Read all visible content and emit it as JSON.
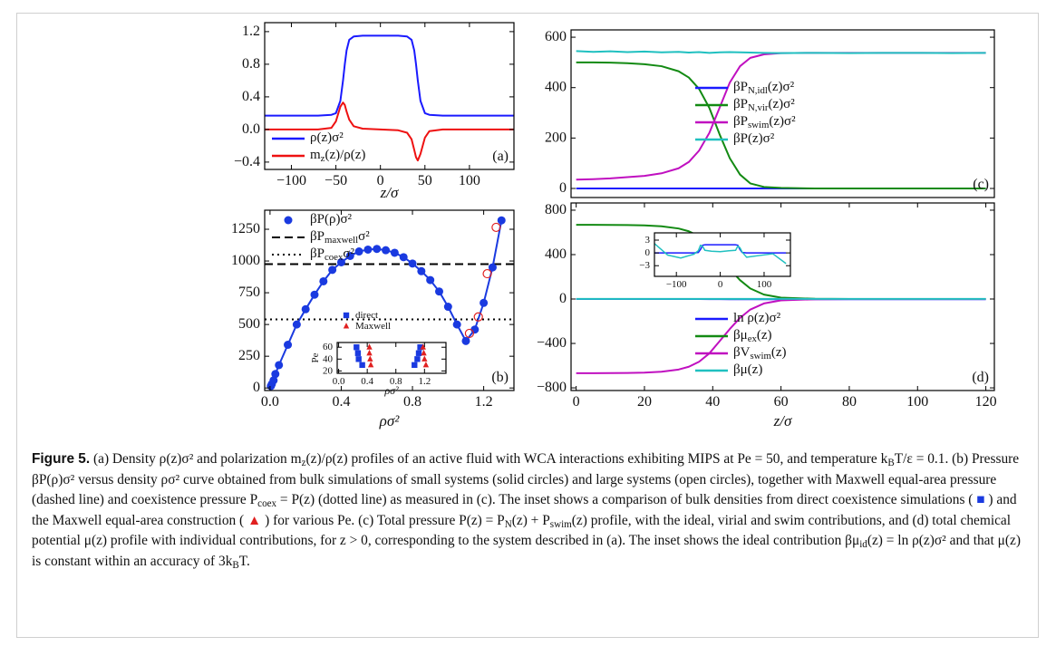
{
  "chart_data": [
    {
      "type": "line",
      "panel": "(a)",
      "xlabel": "z/σ",
      "legend": "lower left",
      "xlim": [
        -130,
        150
      ],
      "ylim": [
        -0.49,
        1.31
      ],
      "xticks": [
        {
          "value": -100,
          "label": "−100"
        },
        {
          "value": -50,
          "label": "−50"
        },
        0,
        50,
        100
      ],
      "yticks": [
        {
          "value": -0.4,
          "label": "−0.4"
        },
        {
          "value": 0,
          "label": "0.0"
        },
        0.4,
        0.8,
        1.2
      ],
      "series": [
        {
          "name": "ρ(z)σ²",
          "color": "#1a1aff",
          "x": [
            -130,
            -100,
            -70,
            -55,
            -50,
            -45,
            -42,
            -40,
            -38,
            -35,
            -30,
            -20,
            0,
            20,
            30,
            35,
            38,
            40,
            42,
            45,
            50,
            55,
            70,
            100,
            130,
            150
          ],
          "values": [
            0.17,
            0.17,
            0.17,
            0.18,
            0.2,
            0.35,
            0.6,
            0.8,
            0.97,
            1.1,
            1.14,
            1.15,
            1.15,
            1.15,
            1.14,
            1.1,
            0.97,
            0.8,
            0.6,
            0.35,
            0.2,
            0.18,
            0.17,
            0.17,
            0.17,
            0.17
          ]
        },
        {
          "name": "m_{z}(z)/ρ(z)",
          "color": "#ee1111",
          "x": [
            -130,
            -100,
            -70,
            -55,
            -50,
            -45,
            -42,
            -40,
            -38,
            -35,
            -30,
            -20,
            0,
            20,
            30,
            35,
            38,
            40,
            42,
            45,
            50,
            55,
            70,
            100,
            130,
            150
          ],
          "values": [
            0,
            0,
            0,
            0.02,
            0.1,
            0.28,
            0.33,
            0.3,
            0.22,
            0.12,
            0.04,
            0.01,
            0,
            -0.01,
            -0.04,
            -0.12,
            -0.25,
            -0.34,
            -0.38,
            -0.3,
            -0.1,
            -0.02,
            0,
            0,
            0,
            0
          ]
        }
      ]
    },
    {
      "type": "scatter",
      "panel": "(b)",
      "xlabel": "ρσ²",
      "legend": "upper left",
      "xlim": [
        -0.03,
        1.37
      ],
      "ylim": [
        -20,
        1400
      ],
      "xticks": [
        {
          "value": 0,
          "label": "0.0"
        },
        0.4,
        0.8,
        1.2
      ],
      "yticks": [
        0,
        250,
        500,
        750,
        1000,
        1250
      ],
      "series": [
        {
          "name": "βP(ρ)σ²",
          "color": "#1a3ae0",
          "marker": "circle",
          "line": true,
          "x": [
            0.005,
            0.01,
            0.02,
            0.03,
            0.05,
            0.1,
            0.15,
            0.2,
            0.25,
            0.3,
            0.35,
            0.4,
            0.45,
            0.5,
            0.55,
            0.6,
            0.65,
            0.7,
            0.75,
            0.8,
            0.85,
            0.9,
            0.95,
            1.0,
            1.05,
            1.1,
            1.15,
            1.2,
            1.25,
            1.3
          ],
          "values": [
            15,
            30,
            60,
            110,
            180,
            340,
            500,
            620,
            735,
            840,
            930,
            990,
            1040,
            1075,
            1090,
            1095,
            1085,
            1065,
            1030,
            980,
            920,
            850,
            760,
            640,
            500,
            370,
            460,
            670,
            950,
            1320
          ]
        },
        {
          "color": "#e02020",
          "marker": "open-circle",
          "x": [
            1.12,
            1.17,
            1.22,
            1.27
          ],
          "values": [
            430,
            560,
            900,
            1265
          ]
        }
      ],
      "hlines": [
        {
          "name": "βP_{maxwell}σ²",
          "value": 975,
          "style": "dashed",
          "color": "#000000"
        },
        {
          "name": "βP_{coex}σ²",
          "value": 540,
          "style": "dotted",
          "color": "#000000"
        }
      ],
      "inset": {
        "type": "scatter",
        "xlabel": "ρσ²",
        "ylabel": "Pe",
        "legend": "above",
        "xlim": [
          -0.02,
          1.5
        ],
        "ylim": [
          16,
          68
        ],
        "xticks": [
          {
            "value": 0,
            "label": "0.0"
          },
          0.4,
          0.8,
          1.2
        ],
        "yticks": [
          20,
          40,
          60
        ],
        "series": [
          {
            "name": "direct",
            "color": "#1a3ae0",
            "marker": "square",
            "x": [
              0.33,
              0.28,
              0.27,
              0.25,
              1.06,
              1.1,
              1.12,
              1.14
            ],
            "values": [
              30,
              40,
              50,
              60,
              30,
              40,
              50,
              60
            ]
          },
          {
            "name": "Maxwell",
            "color": "#e02020",
            "marker": "triangle",
            "x": [
              0.45,
              0.44,
              0.43,
              0.43,
              1.22,
              1.2,
              1.19,
              1.18
            ],
            "values": [
              30,
              40,
              50,
              60,
              30,
              40,
              50,
              60
            ]
          }
        ]
      }
    },
    {
      "type": "line",
      "panel": "(c)",
      "legend": "center right",
      "xlim": [
        -1.5,
        122.5
      ],
      "ylim": [
        -36,
        629
      ],
      "yticks": [
        0,
        200,
        400,
        600
      ],
      "series": [
        {
          "name": "βP_{N,idl}(z)σ²",
          "color": "#1a1aff",
          "x": [
            0,
            5,
            10,
            15,
            20,
            25,
            30,
            33,
            36,
            39,
            42,
            45,
            48,
            51,
            55,
            60,
            70,
            80,
            90,
            100,
            110,
            120
          ],
          "values": [
            0,
            0,
            0,
            0,
            0,
            0,
            0,
            0,
            0,
            0,
            0,
            0,
            0,
            0,
            0,
            0,
            0,
            0,
            0,
            0,
            0,
            0
          ]
        },
        {
          "name": "βP_{N,vir}(z)σ²",
          "color": "#138a13",
          "x": [
            0,
            5,
            10,
            15,
            20,
            25,
            30,
            33,
            36,
            39,
            42,
            45,
            48,
            51,
            55,
            60,
            70,
            80,
            90,
            100,
            110,
            120
          ],
          "values": [
            500,
            500,
            499,
            497,
            493,
            485,
            465,
            440,
            395,
            320,
            215,
            120,
            55,
            20,
            6,
            2,
            0,
            0,
            0,
            0,
            0,
            0
          ]
        },
        {
          "name": "βP_{swim}(z)σ²",
          "color": "#c010c0",
          "x": [
            0,
            5,
            10,
            15,
            20,
            25,
            30,
            33,
            36,
            39,
            42,
            45,
            48,
            51,
            55,
            60,
            70,
            80,
            90,
            100,
            110,
            120
          ],
          "values": [
            35,
            37,
            40,
            45,
            50,
            60,
            80,
            105,
            150,
            220,
            320,
            420,
            485,
            518,
            532,
            537,
            538,
            538,
            538,
            538,
            538,
            538
          ]
        },
        {
          "name": "βP(z)σ²",
          "color": "#20c0c0",
          "x": [
            0,
            5,
            10,
            15,
            20,
            25,
            30,
            33,
            36,
            39,
            42,
            45,
            48,
            51,
            55,
            60,
            70,
            80,
            90,
            100,
            110,
            120
          ],
          "values": [
            545,
            542,
            544,
            541,
            543,
            540,
            542,
            539,
            541,
            538,
            540,
            541,
            540,
            539,
            538,
            537,
            538,
            537,
            538,
            538,
            537,
            538
          ]
        }
      ]
    },
    {
      "type": "line",
      "panel": "(d)",
      "xlabel": "z/σ",
      "legend": "lower right",
      "xlim": [
        -1.5,
        122.5
      ],
      "ylim": [
        -824,
        865
      ],
      "xticks": [
        0,
        20,
        40,
        60,
        80,
        100,
        120
      ],
      "yticks": [
        {
          "value": -800,
          "label": "−800"
        },
        {
          "value": -400,
          "label": "−400"
        },
        0,
        400,
        800
      ],
      "series": [
        {
          "name": "ln ρ(z)σ²",
          "color": "#1a1aff",
          "x": [
            0,
            5,
            10,
            15,
            20,
            25,
            30,
            33,
            36,
            39,
            42,
            45,
            48,
            51,
            55,
            60,
            70,
            80,
            90,
            100,
            110,
            120
          ],
          "values": [
            0.1,
            0.1,
            0.1,
            0.1,
            0.1,
            0.1,
            0.1,
            0.1,
            0.1,
            -0.5,
            -1.2,
            -1.7,
            -1.7,
            -1.7,
            -1.7,
            -1.7,
            -1.7,
            -1.7,
            -1.7,
            -1.7,
            -1.7,
            -1.7
          ]
        },
        {
          "name": "βμ_{ex}(z)",
          "color": "#138a13",
          "x": [
            0,
            5,
            10,
            15,
            20,
            25,
            30,
            33,
            36,
            39,
            42,
            45,
            48,
            51,
            55,
            60,
            70,
            80,
            90,
            100,
            110,
            120
          ],
          "values": [
            668,
            668,
            667,
            666,
            663,
            655,
            635,
            610,
            565,
            490,
            380,
            270,
            170,
            95,
            40,
            12,
            2,
            0,
            0,
            0,
            0,
            0
          ]
        },
        {
          "name": "βV_{swim}(z)",
          "color": "#c010c0",
          "x": [
            0,
            5,
            10,
            15,
            20,
            25,
            30,
            33,
            36,
            39,
            42,
            45,
            48,
            51,
            55,
            60,
            70,
            80,
            90,
            100,
            110,
            120
          ],
          "values": [
            -668,
            -668,
            -667,
            -666,
            -663,
            -655,
            -635,
            -610,
            -565,
            -490,
            -380,
            -270,
            -170,
            -95,
            -40,
            -12,
            -2,
            0,
            0,
            0,
            0,
            0
          ]
        },
        {
          "name": "βμ(z)",
          "color": "#20c0c0",
          "x": [
            0,
            5,
            10,
            15,
            20,
            25,
            30,
            33,
            36,
            39,
            42,
            45,
            48,
            51,
            55,
            60,
            70,
            80,
            90,
            100,
            110,
            120
          ],
          "values": [
            1,
            1,
            1,
            1,
            1,
            1,
            1,
            1,
            1,
            1,
            1,
            1,
            1,
            1,
            1,
            1,
            1,
            1,
            1,
            1,
            1,
            1
          ]
        }
      ],
      "inset": {
        "type": "line",
        "xlim": [
          -150,
          160
        ],
        "ylim": [
          -5.5,
          4.7
        ],
        "xticks": [
          {
            "value": -100,
            "label": "−100"
          },
          0,
          100
        ],
        "yticks": [
          {
            "value": -3,
            "label": "−3"
          },
          0,
          3
        ],
        "series": [
          {
            "color": "#1a1aff",
            "x": [
              -150,
              -120,
              -90,
              -60,
              -50,
              -45,
              -40,
              -35,
              -20,
              0,
              20,
              35,
              40,
              45,
              50,
              60,
              90,
              120,
              150
            ],
            "values": [
              0,
              0,
              0,
              0,
              0.1,
              0.8,
              1.8,
              1.9,
              1.9,
              1.9,
              1.9,
              1.9,
              1.8,
              0.8,
              0.1,
              0,
              0,
              0,
              0
            ]
          },
          {
            "color": "#20c0c0",
            "x": [
              -150,
              -120,
              -90,
              -60,
              -50,
              -45,
              -40,
              -35,
              -20,
              0,
              20,
              35,
              40,
              45,
              50,
              60,
              90,
              120,
              150
            ],
            "values": [
              2.2,
              -0.5,
              -1.2,
              -0.3,
              0.5,
              1.8,
              1.5,
              0.6,
              0.4,
              0.3,
              0.5,
              0.6,
              1.6,
              1.2,
              0.2,
              -1,
              -0.6,
              -0.2,
              -2.5
            ]
          }
        ]
      }
    }
  ],
  "caption": {
    "label": "Figure 5.",
    "text": "(a) Density ρ(z)σ² and polarization m_{z}(z)/ρ(z) profiles of an active fluid with WCA interactions exhibiting MIPS at Pe = 50, and temperature k_{B}T/ε = 0.1. (b) Pressure βP(ρ)σ² versus density ρσ² curve obtained from bulk simulations of small systems (solid circles) and large systems (open circles), together with Maxwell equal-area pressure (dashed line) and coexistence pressure P_{coex} = P(z) (dotted line) as measured in (c). The inset shows a comparison of bulk densities from direct coexistence simulations ( ■ ) and the Maxwell equal-area construction ( ▲ ) for various Pe. (c) Total pressure P(z) = P_{N}(z) + P_{swim}(z) profile, with the ideal, virial and swim contributions, and (d) total chemical potential μ(z) profile with individual contributions, for z > 0, corresponding to the system described in (a). The inset shows the ideal contribution βμ_{id}(z) = ln ρ(z)σ² and that μ(z) is constant within an accuracy of 3k_{B}T."
  }
}
